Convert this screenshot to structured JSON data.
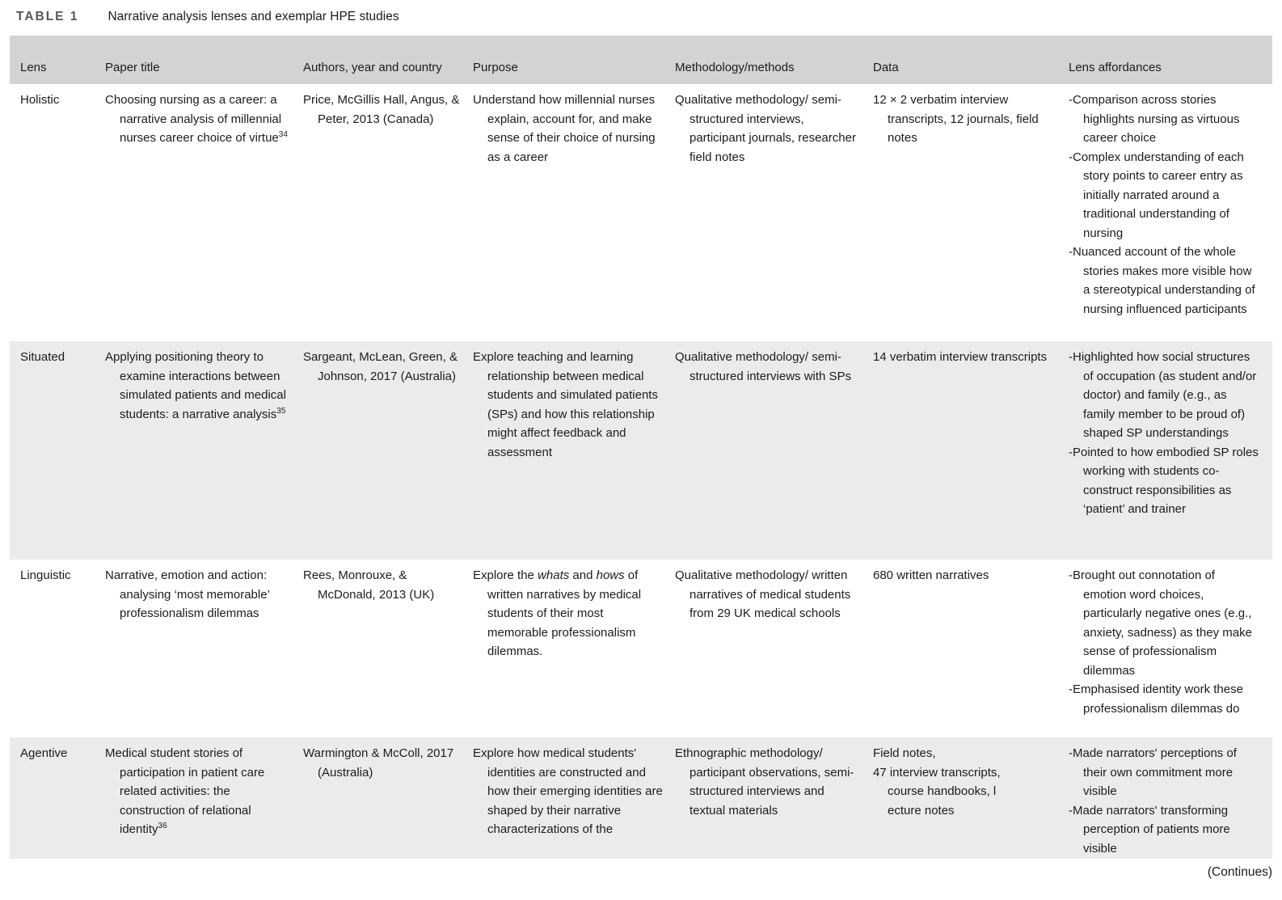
{
  "title": {
    "label": "TABLE 1",
    "caption": "Narrative analysis lenses and exemplar HPE studies"
  },
  "columns": {
    "lens": "Lens",
    "paper_title": "Paper title",
    "authors": "Authors, year and country",
    "purpose": "Purpose",
    "methodology": "Methodology/methods",
    "data": "Data",
    "affordances": "Lens affordances"
  },
  "rows": [
    {
      "lens": "Holistic",
      "title": "Choosing nursing as a career: a narrative analysis of millennial nurses career choice of virtue",
      "title_sup": "34",
      "authors": "Price, McGillis Hall, Angus, & Peter, 2013 (Canada)",
      "purpose": "Understand how millennial nurses explain, account for, and make sense of their choice of nursing as a career",
      "methods": "Qualitative methodology/ semi-structured interviews, participant journals, researcher field notes",
      "data": "12 × 2 verbatim interview transcripts, 12 journals, field notes",
      "affordances": [
        "-Comparison across stories highlights nursing as virtuous career choice",
        "-Complex understanding of each story points to career entry as initially narrated around a traditional understanding of nursing",
        "-Nuanced account of the whole stories makes more visible how a stereotypical understanding of nursing influenced participants"
      ]
    },
    {
      "lens": "Situated",
      "title": "Applying positioning theory to examine interactions between simulated patients and medical students: a narrative analysis",
      "title_sup": "35",
      "authors": "Sargeant, McLean, Green, & Johnson, 2017 (Australia)",
      "purpose": "Explore teaching and learning relationship between medical students and simulated patients (SPs) and how this relationship might affect feedback and assessment",
      "methods": "Qualitative methodology/ semi-structured interviews with SPs",
      "data": "14 verbatim interview transcripts",
      "affordances": [
        "-Highlighted how social structures of occupation (as student and/or doctor) and family (e.g., as family member to be proud of) shaped SP understandings",
        "-Pointed to how embodied SP roles working with students co-construct responsibilities as ‘patient’ and trainer"
      ]
    },
    {
      "lens": "Linguistic",
      "title": "Narrative, emotion and action: analysing ‘most memorable’ professionalism dilemmas",
      "authors": "Rees, Monrouxe, & McDonald, 2013 (UK)",
      "purpose_parts": {
        "p0": "Explore the ",
        "p1": "whats",
        "p2": " and ",
        "p3": "hows",
        "p4": " of written narratives by medical students of their most memorable professionalism dilemmas."
      },
      "methods": "Qualitative methodology/ written narratives of medical students from 29 UK medical schools",
      "data": "680 written narratives",
      "affordances": [
        "-Brought out connotation of emotion word choices, particularly negative ones (e.g., anxiety, sadness) as they make sense of professionalism dilemmas",
        "-Emphasised identity work these professionalism dilemmas do"
      ]
    },
    {
      "lens": "Agentive",
      "title": "Medical student stories of participation in patient care related activities: the construction of relational identity",
      "title_sup": "36",
      "authors": "Warmington & McColl, 2017 (Australia)",
      "purpose": "Explore how medical students' identities are constructed and how their emerging identities are shaped by their narrative characterizations of the",
      "methods": "Ethnographic methodology/ participant observations, semi-structured interviews and textual materials",
      "data_lines": {
        "l0": "Field notes,",
        "l1": "47 interview transcripts,",
        "l2": "course handbooks, l",
        "l3": "ecture notes"
      },
      "affordances": [
        "-Made narrators' perceptions of their own commitment more visible",
        "-Made narrators' transforming perception of patients more visible"
      ]
    }
  ],
  "footer": {
    "continues": "(Continues)"
  }
}
